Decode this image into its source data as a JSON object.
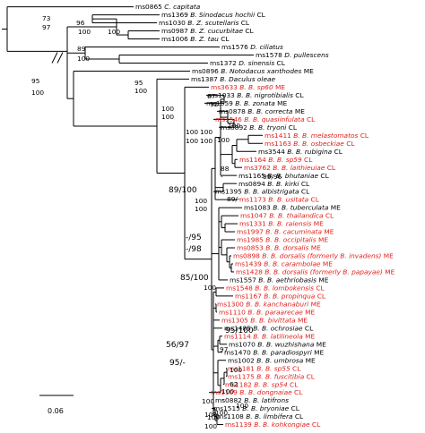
{
  "colors": {
    "branch": "#000000",
    "highlight": "#e0201b",
    "normal": "#000000"
  },
  "taxa": [
    {
      "code": "ms0865",
      "name": "C. capitata",
      "suffix": "",
      "red": false
    },
    {
      "code": "ms1369",
      "name": "B. Sinodacus hochii",
      "suffix": "CL",
      "red": false
    },
    {
      "code": "ms1030",
      "name": "B. Z. scutellaris",
      "suffix": "CL",
      "red": false
    },
    {
      "code": "ms0987",
      "name": "B. Z. cucurbitae",
      "suffix": "CL",
      "red": false
    },
    {
      "code": "ms1006",
      "name": "B. Z. tau",
      "suffix": "CL",
      "red": false
    },
    {
      "code": "ms1576",
      "name": "D. ciliatus",
      "suffix": "",
      "red": false
    },
    {
      "code": "ms1578",
      "name": "D. pullescens",
      "suffix": "",
      "red": false
    },
    {
      "code": "ms1372",
      "name": "D. sinensis",
      "suffix": "CL",
      "red": false
    },
    {
      "code": "ms0896",
      "name": "B. Notodacus xanthodes",
      "suffix": "ME",
      "red": false
    },
    {
      "code": "ms1387",
      "name": "B. Daculus oleae",
      "suffix": "",
      "red": false
    },
    {
      "code": "ms3633",
      "name": "B. B. sp60",
      "suffix": "ME",
      "red": true
    },
    {
      "code": "ms1033",
      "name": "B. B. nigrotibialis",
      "suffix": "CL",
      "red": false
    },
    {
      "code": "ms1559",
      "name": "B. B. zonata",
      "suffix": "ME",
      "red": false
    },
    {
      "code": "ms0878",
      "name": "B. B. correcta",
      "suffix": "ME",
      "red": false
    },
    {
      "code": "ms1546",
      "name": "B. B. quasiinfulata",
      "suffix": "CL",
      "red": true
    },
    {
      "code": "ms0892",
      "name": "B. B. tryoni",
      "suffix": "CL",
      "red": false
    },
    {
      "code": "ms1411",
      "name": "B. B. melastomatos",
      "suffix": "CL",
      "red": true
    },
    {
      "code": "ms1163",
      "name": "B. B. osbeckiae",
      "suffix": "CL",
      "red": true
    },
    {
      "code": "ms3544",
      "name": "B. B. rubigina",
      "suffix": "CL",
      "red": false
    },
    {
      "code": "ms1164",
      "name": "B. B. sp59",
      "suffix": "CL",
      "red": true
    },
    {
      "code": "ms3762",
      "name": "B. B. laithieuiae",
      "suffix": "CL",
      "red": true
    },
    {
      "code": "ms1165",
      "name": "B. B. bhutaniae",
      "suffix": "CL",
      "red": false
    },
    {
      "code": "ms0894",
      "name": "B. B. kirki",
      "suffix": "CL",
      "red": false
    },
    {
      "code": "ms1395",
      "name": "B. B. albistrigata",
      "suffix": "CL",
      "red": false
    },
    {
      "code": "ms1173",
      "name": "B. B. usitata",
      "suffix": "CL",
      "red": true
    },
    {
      "code": "ms1083",
      "name": "B. B. tuberculata",
      "suffix": "ME",
      "red": false
    },
    {
      "code": "ms1047",
      "name": "B. B. thailandica",
      "suffix": "CL",
      "red": true
    },
    {
      "code": "ms1331",
      "name": "B. B. raiensis",
      "suffix": "ME",
      "red": true
    },
    {
      "code": "ms1997",
      "name": "B. B. cacuminata",
      "suffix": "ME",
      "red": true
    },
    {
      "code": "ms1985",
      "name": "B. B. occipitalis",
      "suffix": "ME",
      "red": true
    },
    {
      "code": "ms0853",
      "name": "B. B. dorsalis",
      "suffix": "ME",
      "red": true
    },
    {
      "code": "ms0898",
      "name": "B. B. dorsalis (formerly B. invadens)",
      "suffix": "ME",
      "red": true
    },
    {
      "code": "ms1439",
      "name": "B. B. carambolae",
      "suffix": "ME",
      "red": true
    },
    {
      "code": "ms1428",
      "name": "B. B. dorsalis (formerly B. papayae)",
      "suffix": "ME",
      "red": true
    },
    {
      "code": "ms1557",
      "name": "B. B. aethriobasis",
      "suffix": "ME",
      "red": false
    },
    {
      "code": "ms1548",
      "name": "B. B. lombokensis",
      "suffix": "CL",
      "red": true
    },
    {
      "code": "ms1167",
      "name": "B. B. propinqua",
      "suffix": "CL",
      "red": true
    },
    {
      "code": "ms1300",
      "name": "B. B. kanchanaburi",
      "suffix": "ME",
      "red": true
    },
    {
      "code": "ms1110",
      "name": "B. B. paraarecae",
      "suffix": "ME",
      "red": true
    },
    {
      "code": "ms1305",
      "name": "B. B. bivittata",
      "suffix": "ME",
      "red": true
    },
    {
      "code": "ms1485",
      "name": "B. B. ochrosiae",
      "suffix": "CL",
      "red": false
    },
    {
      "code": "ms1114",
      "name": "B. B. latilineola",
      "suffix": "ME",
      "red": true
    },
    {
      "code": "ms1070",
      "name": "B. B. wuzhishana",
      "suffix": "ME",
      "red": false
    },
    {
      "code": "ms1470",
      "name": "B. B. paradiospyri",
      "suffix": "ME",
      "red": false
    },
    {
      "code": "ms1002",
      "name": "B. B. umbrosa",
      "suffix": "ME",
      "red": false
    },
    {
      "code": "ms1181",
      "name": "B. B. sp55",
      "suffix": "CL",
      "red": true
    },
    {
      "code": "ms1175",
      "name": "B. B. fuscitibia",
      "suffix": "CL",
      "red": true
    },
    {
      "code": "ms1182",
      "name": "B. B. sp54",
      "suffix": "CL",
      "red": true
    },
    {
      "code": "ms1109",
      "name": "B. B. dongnaiae",
      "suffix": "CL",
      "red": true
    },
    {
      "code": "ms0882",
      "name": "B. B. latifrons",
      "suffix": "",
      "red": false
    },
    {
      "code": "ms1515",
      "name": "B. B. bryoniae",
      "suffix": "CL",
      "red": false
    },
    {
      "code": "ms1108",
      "name": "B. B. limbifera",
      "suffix": "CL",
      "red": false
    },
    {
      "code": "ms1139",
      "name": "B. B. kohkongiae",
      "suffix": "CL",
      "red": true
    }
  ],
  "support_values": [
    "73",
    "97",
    "96",
    "100",
    "100",
    "89",
    "100",
    "95",
    "100",
    "95",
    "100",
    "100",
    "100",
    "67",
    "92",
    "100",
    "100",
    "100",
    "100",
    "100",
    "99/96",
    "100",
    "88",
    "-",
    "89/100",
    "89/-",
    "100",
    "100",
    "-/95",
    "-/98",
    "85/100",
    "100",
    "95/100",
    "56/97",
    "97",
    "95/-",
    "100",
    "62",
    "100",
    "-",
    "100",
    "100",
    "100",
    "100",
    "100",
    "100"
  ],
  "scale_bar": {
    "label": "0.06"
  }
}
